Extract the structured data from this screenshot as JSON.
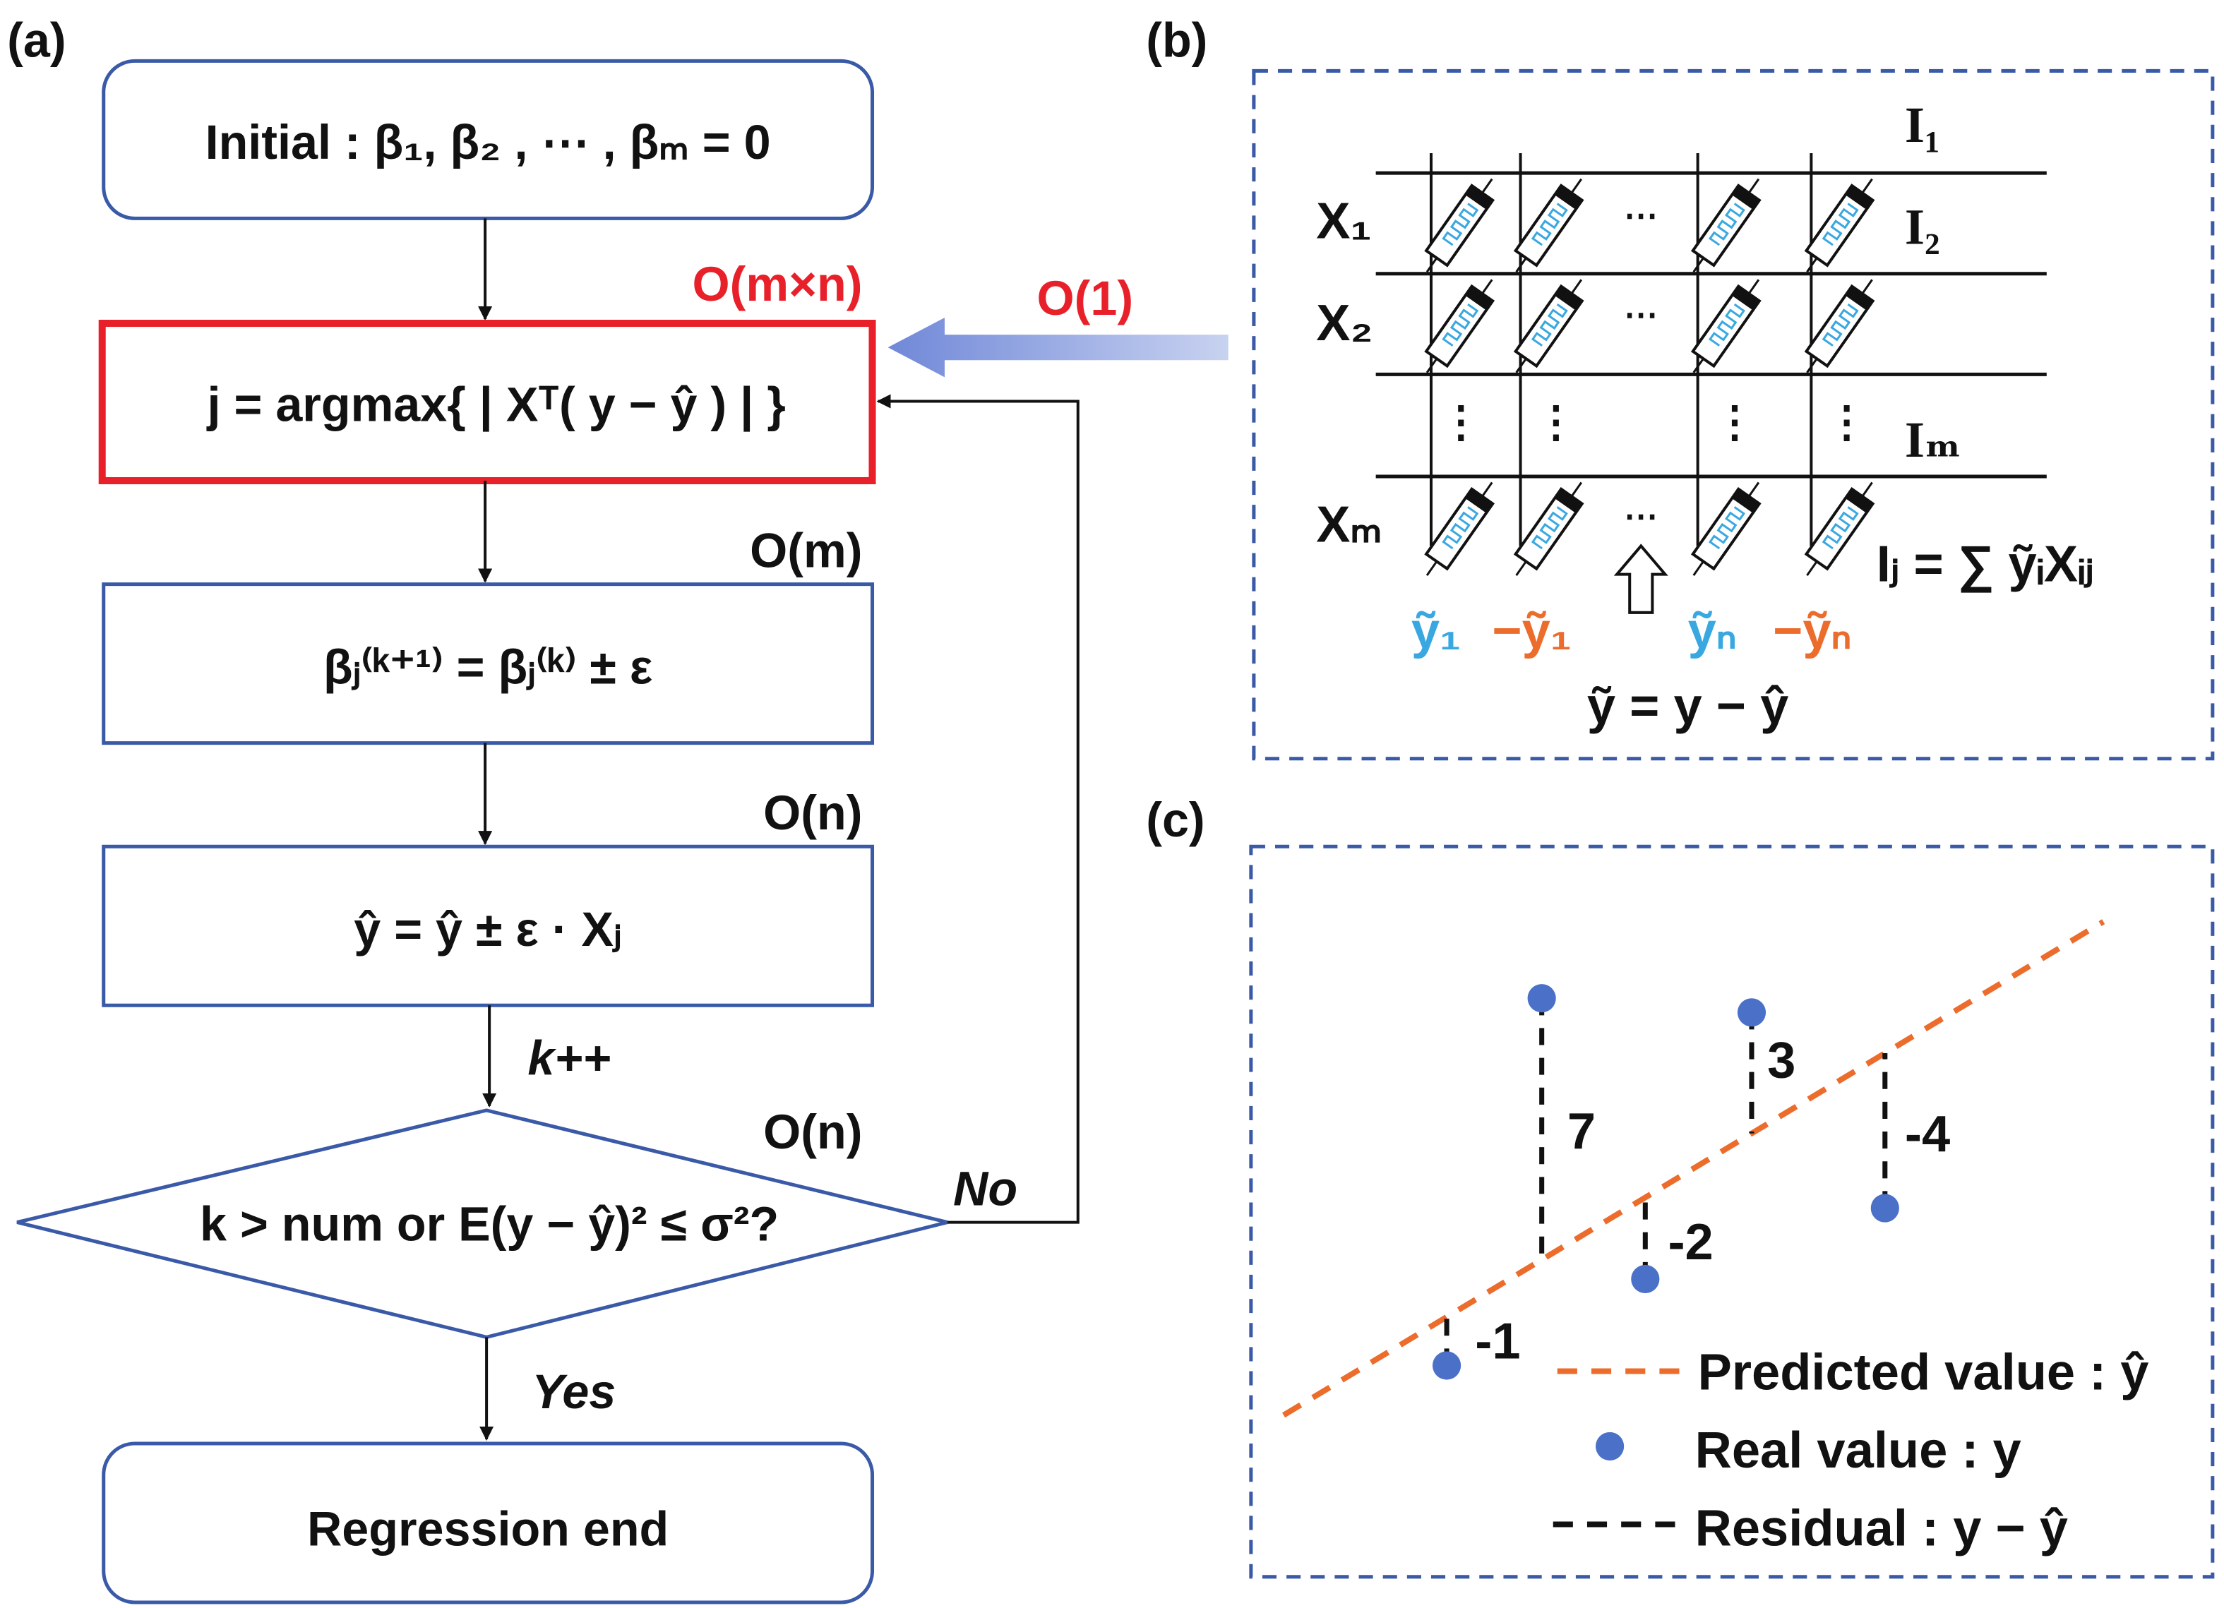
{
  "panel_a": {
    "label": "(a)",
    "init": "Initial : β₁, β₂ , ⋯ , βₘ = 0",
    "argmax": "j = argmax{ | Xᵀ( y − ŷ ) | }",
    "update_beta": "βⱼ⁽ᵏ⁺¹⁾ = βⱼ⁽ᵏ⁾ ± ε",
    "update_yhat": "ŷ = ŷ ± ε · Xⱼ",
    "condition": "k > num or E(y − ŷ)² ≤ σ²?",
    "end": "Regression end",
    "cost_argmax": "O(m×n)",
    "cost_beta": "O(m)",
    "cost_yhat": "O(n)",
    "cost_cond": "O(n)",
    "increment": "k++",
    "no": "No",
    "yes": "Yes",
    "cost_crossbar": "O(1)"
  },
  "panel_b": {
    "label": "(b)",
    "rows": [
      "X₁",
      "X₂",
      "Xₘ"
    ],
    "currents": [
      "I₁",
      "I₂",
      "Iₘ"
    ],
    "ellipsis_h": "⋯",
    "ellipsis_v": "⋮",
    "col_inputs": [
      {
        "text": "ỹ₁",
        "color": "blue"
      },
      {
        "text": "−ỹ₁",
        "color": "orange"
      },
      {
        "text": "ỹₙ",
        "color": "blue"
      },
      {
        "text": "−ỹₙ",
        "color": "orange"
      }
    ],
    "residual_def": "ỹ = y − ŷ",
    "current_eq": "Iⱼ = ∑ ỹᵢXᵢⱼ"
  },
  "panel_c": {
    "label": "(c)",
    "residuals": [
      "-1",
      "7",
      "-2",
      "3",
      "-4"
    ],
    "legend": {
      "predicted": "Predicted value : ŷ",
      "real": "Real value : y",
      "residual": "Residual : y − ŷ"
    }
  },
  "colors": {
    "red": "#e8202a",
    "box_border": "#3a5aa8",
    "blue_text": "#3aa8e0",
    "orange": "#ec6c2c",
    "point": "#4a70c8",
    "dashed_frame": "#3a5aa8"
  }
}
